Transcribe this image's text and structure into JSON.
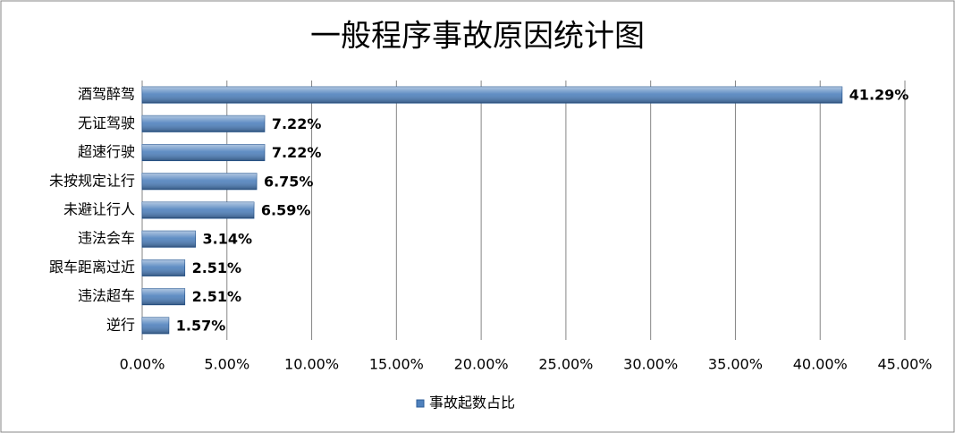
{
  "chart_data": {
    "type": "bar",
    "orientation": "horizontal",
    "title": "一般程序事故原因统计图",
    "categories": [
      "酒驾醉驾",
      "无证驾驶",
      "超速行驶",
      "未按规定让行",
      "未避让行人",
      "违法会车",
      "跟车距离过近",
      "违法超车",
      "逆行"
    ],
    "series": [
      {
        "name": "事故起数占比",
        "color": "#4f81bd",
        "values": [
          41.29,
          7.22,
          7.22,
          6.75,
          6.59,
          3.14,
          2.51,
          2.51,
          1.57
        ],
        "value_labels": [
          "41.29%",
          "7.22%",
          "7.22%",
          "6.75%",
          "6.59%",
          "3.14%",
          "2.51%",
          "2.51%",
          "1.57%"
        ]
      }
    ],
    "xlim": [
      0,
      45
    ],
    "xticks": [
      {
        "value": 0,
        "label": "0.00%"
      },
      {
        "value": 5,
        "label": "5.00%"
      },
      {
        "value": 10,
        "label": "10.00%"
      },
      {
        "value": 15,
        "label": "15.00%"
      },
      {
        "value": 20,
        "label": "20.00%"
      },
      {
        "value": 25,
        "label": "25.00%"
      },
      {
        "value": 30,
        "label": "30.00%"
      },
      {
        "value": 35,
        "label": "35.00%"
      },
      {
        "value": 40,
        "label": "40.00%"
      },
      {
        "value": 45,
        "label": "45.00%"
      }
    ],
    "grid": true,
    "legend": "bottom"
  }
}
